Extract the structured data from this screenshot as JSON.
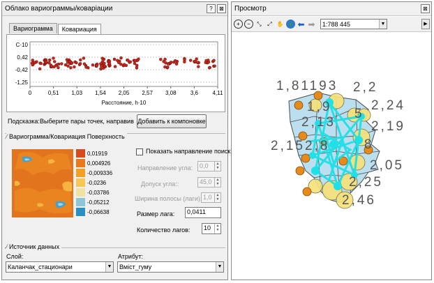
{
  "left_window": {
    "title": "Облако вариограммы/коваріации",
    "help_label": "?",
    "close_label": "⊠",
    "tabs": [
      {
        "label": "Вариограмма"
      },
      {
        "label": "Ковариация"
      }
    ],
    "plot": {
      "y_ticks": [
        "C·10",
        "0,42",
        "-0,42",
        "-1,25"
      ],
      "x_ticks": [
        "0",
        "0,51",
        "1,03",
        "1,54",
        "2,05",
        "2,57",
        "3,08",
        "3,6",
        "4,11"
      ],
      "xlabel": "Расстояние, h·10"
    },
    "hint_label": "Подсказка:",
    "hint_text": "Выберите пары точек, направив",
    "add_layout_button": "Добавить к компоновке",
    "surface_section": "Вариограмма/Ковариация Поверхность",
    "legend": [
      "0,01919",
      "0,004926",
      "-0,009336",
      "-0,0236",
      "-0,03786",
      "-0,05212",
      "-0,06638"
    ],
    "legend_colors": [
      "#d84a1c",
      "#e87a1c",
      "#f5a023",
      "#f7c654",
      "#f0e2a0",
      "#8cc6d8",
      "#2a8fc2"
    ],
    "show_direction": {
      "label": "Показать направление поиска",
      "checked": false
    },
    "angle_direction": {
      "label": "Направление угла:",
      "value": "0,0"
    },
    "angle_tolerance": {
      "label": "Допуск угла::",
      "value": "45,0"
    },
    "bandwidth": {
      "label": "Ширина полосы (лаги):",
      "value": "1,0"
    },
    "lag_size": {
      "label": "Размер лага:",
      "value": "0,0411"
    },
    "lag_count": {
      "label": "Количество лагов:",
      "value": "10"
    },
    "source_section": "Источник данных",
    "layer": {
      "label": "Слой:",
      "value": "Каланчак_стационари"
    },
    "attribute": {
      "label": "Атрибут:",
      "value": "Вміст_гуму"
    }
  },
  "right_window": {
    "title": "Просмотр",
    "close_label": "⊠",
    "scale": "1:788 445",
    "map_labels": [
      "1,81193",
      "2,2",
      "1,9",
      "2,24",
      "2,13",
      "2,19",
      "2,152,8",
      "8",
      "2,05",
      "2,25",
      "2,46",
      "5"
    ]
  }
}
